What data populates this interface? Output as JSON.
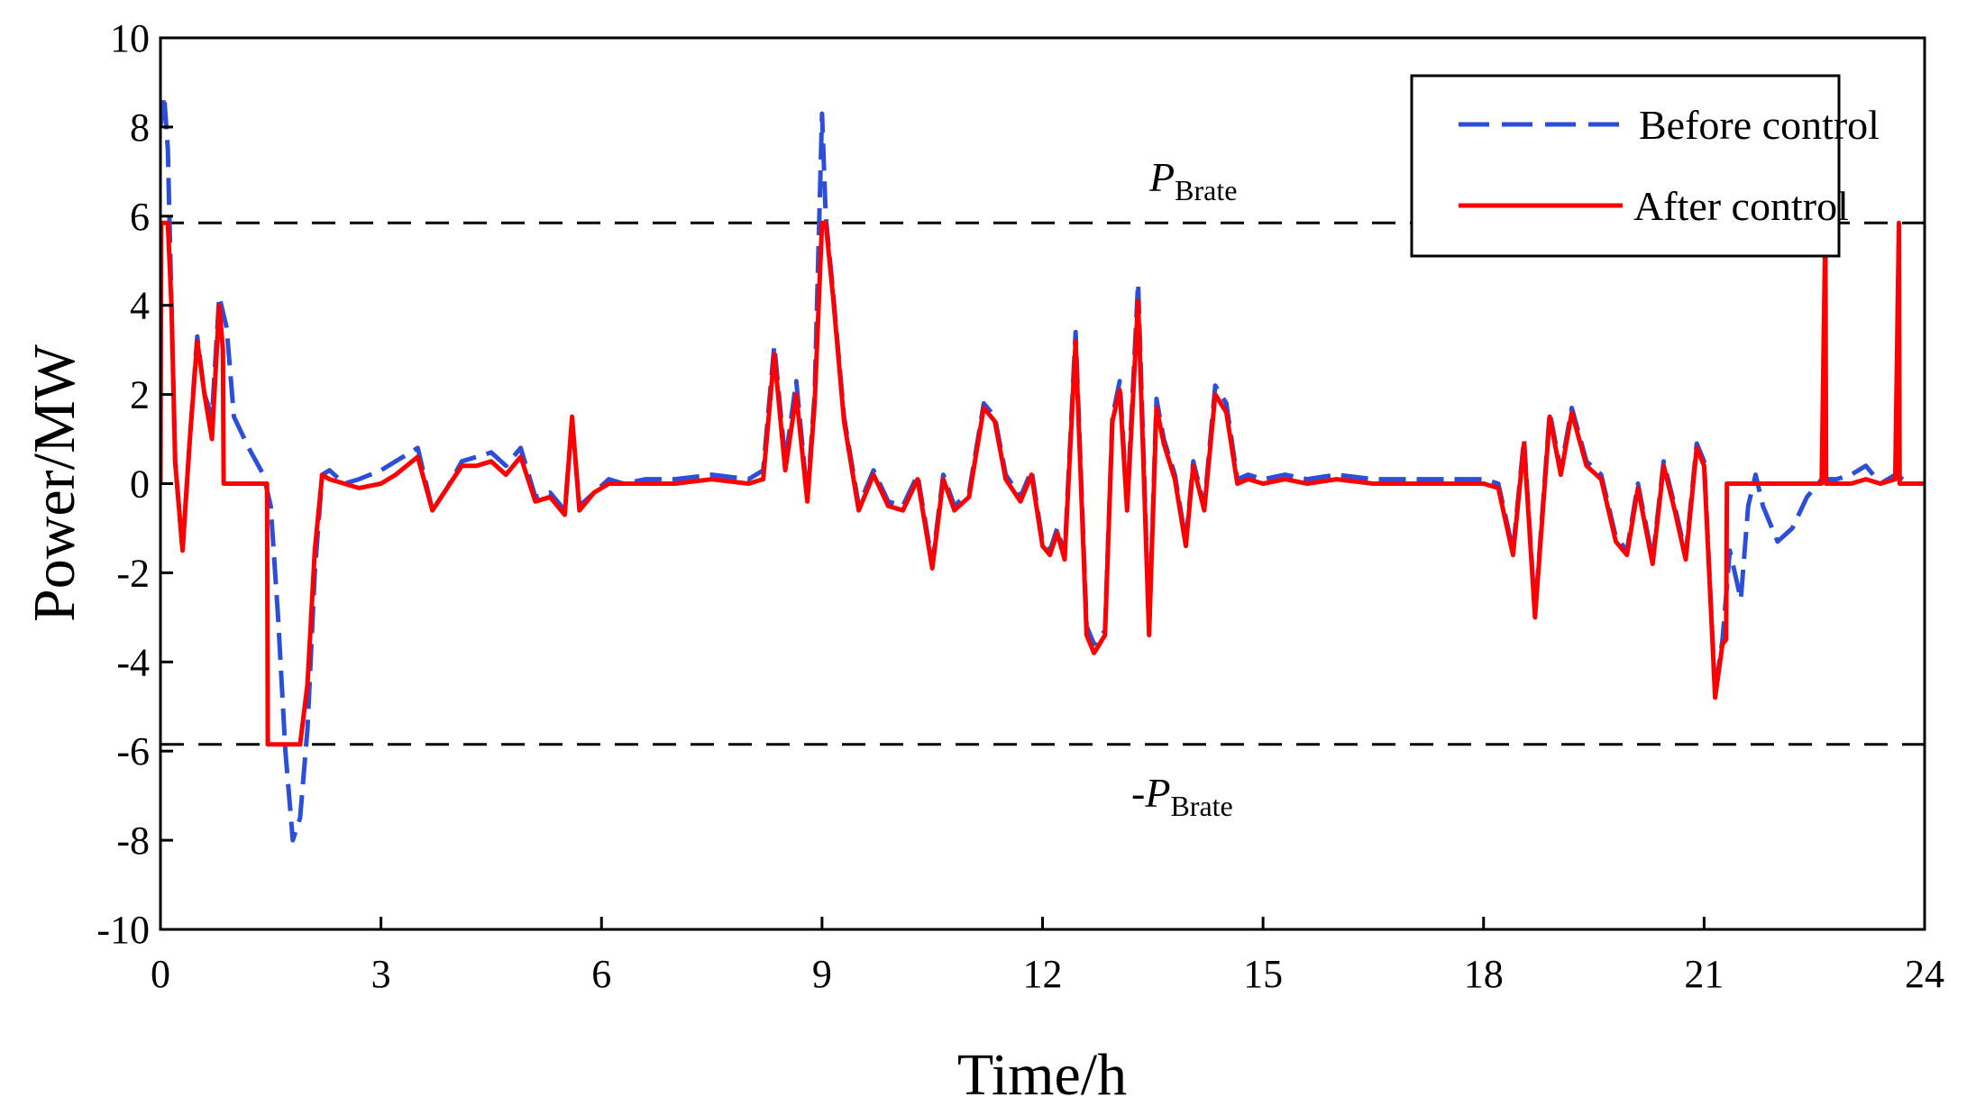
{
  "chart_data": {
    "type": "line",
    "title": "",
    "xlabel": "Time/h",
    "ylabel": "Power/MW",
    "xlim": [
      0,
      24
    ],
    "ylim": [
      -10,
      10
    ],
    "xticks": [
      0,
      3,
      6,
      9,
      12,
      15,
      18,
      21,
      24
    ],
    "yticks": [
      -10,
      -8,
      -6,
      -4,
      -2,
      0,
      2,
      4,
      6,
      8,
      10
    ],
    "grid": false,
    "legend_position": "top-right",
    "reference_lines": [
      {
        "name": "P_Brate",
        "value": 5.85,
        "style": "dashed",
        "color": "#000000",
        "label_prefix": "",
        "label_main": "P",
        "label_sub": "Brate"
      },
      {
        "name": "-P_Brate",
        "value": -5.85,
        "style": "dashed",
        "color": "#000000",
        "label_prefix": "-",
        "label_main": "P",
        "label_sub": "Brate"
      }
    ],
    "series": [
      {
        "name": "Before control",
        "color": "#2b4fd8",
        "style": "dashed",
        "x": [
          0,
          0.05,
          0.1,
          0.15,
          0.2,
          0.3,
          0.4,
          0.5,
          0.6,
          0.7,
          0.8,
          0.9,
          1.0,
          1.2,
          1.4,
          1.5,
          1.6,
          1.7,
          1.8,
          1.9,
          2.0,
          2.1,
          2.2,
          2.3,
          2.5,
          2.7,
          3.0,
          3.2,
          3.5,
          3.7,
          3.9,
          4.1,
          4.3,
          4.5,
          4.7,
          4.9,
          5.1,
          5.3,
          5.5,
          5.6,
          5.7,
          5.9,
          6.1,
          6.3,
          6.6,
          7.0,
          7.5,
          8.0,
          8.2,
          8.35,
          8.5,
          8.65,
          8.8,
          8.9,
          9.0,
          9.05,
          9.15,
          9.3,
          9.5,
          9.7,
          9.9,
          10.1,
          10.3,
          10.5,
          10.65,
          10.8,
          11.0,
          11.2,
          11.35,
          11.5,
          11.7,
          11.85,
          12.0,
          12.1,
          12.2,
          12.3,
          12.45,
          12.6,
          12.7,
          12.85,
          12.95,
          13.05,
          13.15,
          13.3,
          13.45,
          13.55,
          13.65,
          13.8,
          13.95,
          14.05,
          14.2,
          14.35,
          14.5,
          14.65,
          14.8,
          15.0,
          15.3,
          15.6,
          16.0,
          16.5,
          17.0,
          17.5,
          18.0,
          18.2,
          18.4,
          18.55,
          18.7,
          18.9,
          19.05,
          19.2,
          19.4,
          19.6,
          19.8,
          19.95,
          20.1,
          20.3,
          20.45,
          20.6,
          20.75,
          20.9,
          21.0,
          21.15,
          21.25,
          21.35,
          21.5,
          21.6,
          21.7,
          21.8,
          22.0,
          22.2,
          22.4,
          22.6,
          22.8,
          23.0,
          23.2,
          23.4,
          23.6,
          23.8,
          24.0
        ],
        "values": [
          8.0,
          8.7,
          7.5,
          4.0,
          0.5,
          -1.5,
          1.0,
          3.3,
          2.0,
          1.5,
          4.2,
          3.5,
          1.5,
          0.8,
          0.2,
          -0.5,
          -3.0,
          -6.0,
          -8.0,
          -7.5,
          -5.5,
          -2.0,
          0.2,
          0.3,
          0.0,
          0.1,
          0.3,
          0.5,
          0.8,
          -0.6,
          -0.1,
          0.5,
          0.6,
          0.7,
          0.4,
          0.8,
          -0.3,
          -0.2,
          -0.6,
          1.4,
          -0.5,
          -0.2,
          0.1,
          0.0,
          0.1,
          0.1,
          0.2,
          0.1,
          0.3,
          3.1,
          0.5,
          2.3,
          -0.3,
          2.0,
          8.3,
          6.0,
          4.3,
          1.5,
          -0.5,
          0.3,
          -0.4,
          -0.5,
          0.2,
          -1.8,
          0.2,
          -0.5,
          -0.2,
          1.8,
          1.5,
          0.2,
          -0.3,
          0.3,
          -1.3,
          -1.5,
          -1.0,
          -1.6,
          3.4,
          -3.2,
          -3.6,
          -3.3,
          1.5,
          2.3,
          -0.5,
          4.5,
          -3.3,
          1.9,
          1.0,
          0.2,
          -1.3,
          0.5,
          -0.5,
          2.2,
          1.8,
          0.1,
          0.2,
          0.1,
          0.2,
          0.1,
          0.2,
          0.1,
          0.1,
          0.1,
          0.1,
          0.0,
          -1.5,
          1.0,
          -2.9,
          1.6,
          0.3,
          1.7,
          0.5,
          0.2,
          -1.2,
          -1.5,
          0.0,
          -1.7,
          0.5,
          -0.5,
          -1.6,
          0.9,
          0.5,
          -4.7,
          -3.5,
          -1.5,
          -2.6,
          -0.5,
          0.2,
          -0.5,
          -1.3,
          -1.0,
          -0.3,
          0.1,
          0.1,
          0.2,
          0.4,
          0.0,
          0.2,
          0.0,
          0.0
        ]
      },
      {
        "name": "After control",
        "color": "#ff0000",
        "style": "solid",
        "x": [
          0,
          0.01,
          0.05,
          0.1,
          0.15,
          0.2,
          0.3,
          0.4,
          0.5,
          0.6,
          0.7,
          0.8,
          0.85,
          0.86,
          1.0,
          1.2,
          1.45,
          1.46,
          1.6,
          1.7,
          1.8,
          1.9,
          2.0,
          2.1,
          2.2,
          2.3,
          2.5,
          2.7,
          3.0,
          3.2,
          3.5,
          3.7,
          3.9,
          4.1,
          4.3,
          4.5,
          4.7,
          4.9,
          5.1,
          5.3,
          5.5,
          5.6,
          5.7,
          5.9,
          6.1,
          6.3,
          6.6,
          7.0,
          7.5,
          8.0,
          8.2,
          8.35,
          8.5,
          8.65,
          8.8,
          8.9,
          9.0,
          9.05,
          9.15,
          9.3,
          9.5,
          9.7,
          9.9,
          10.1,
          10.3,
          10.5,
          10.65,
          10.8,
          11.0,
          11.2,
          11.35,
          11.5,
          11.7,
          11.85,
          12.0,
          12.1,
          12.2,
          12.3,
          12.45,
          12.6,
          12.7,
          12.85,
          12.95,
          13.05,
          13.15,
          13.3,
          13.45,
          13.55,
          13.65,
          13.8,
          13.95,
          14.05,
          14.2,
          14.35,
          14.5,
          14.65,
          14.8,
          15.0,
          15.3,
          15.6,
          16.0,
          16.5,
          17.0,
          17.5,
          18.0,
          18.2,
          18.4,
          18.55,
          18.7,
          18.9,
          19.05,
          19.2,
          19.4,
          19.6,
          19.8,
          19.95,
          20.1,
          20.3,
          20.45,
          20.6,
          20.75,
          20.9,
          21.0,
          21.15,
          21.25,
          21.3,
          21.31,
          22.0,
          22.6,
          22.65,
          22.66,
          23.0,
          23.2,
          23.4,
          23.6,
          23.65,
          23.66,
          24.0
        ],
        "values": [
          0,
          5.85,
          5.85,
          5.85,
          4.0,
          0.5,
          -1.5,
          1.0,
          3.2,
          2.0,
          1.0,
          4.0,
          3.0,
          0.0,
          0.0,
          0.0,
          0.0,
          -5.85,
          -5.85,
          -5.85,
          -5.85,
          -5.85,
          -4.5,
          -1.5,
          0.2,
          0.1,
          0.0,
          -0.1,
          0.0,
          0.2,
          0.6,
          -0.6,
          -0.1,
          0.4,
          0.4,
          0.5,
          0.2,
          0.6,
          -0.4,
          -0.3,
          -0.7,
          1.5,
          -0.6,
          -0.2,
          0.0,
          0.0,
          0.0,
          0.0,
          0.1,
          0.0,
          0.1,
          2.9,
          0.3,
          2.0,
          -0.4,
          1.8,
          5.85,
          5.85,
          4.2,
          1.4,
          -0.6,
          0.2,
          -0.5,
          -0.6,
          0.1,
          -1.9,
          0.1,
          -0.6,
          -0.3,
          1.7,
          1.4,
          0.1,
          -0.4,
          0.2,
          -1.4,
          -1.6,
          -1.1,
          -1.7,
          3.2,
          -3.4,
          -3.8,
          -3.4,
          1.4,
          2.1,
          -0.6,
          4.1,
          -3.4,
          1.7,
          0.9,
          0.1,
          -1.4,
          0.4,
          -0.6,
          2.0,
          1.6,
          0.0,
          0.1,
          0.0,
          0.1,
          0.0,
          0.1,
          0.0,
          0.0,
          0.0,
          0.0,
          -0.1,
          -1.6,
          0.9,
          -3.0,
          1.5,
          0.2,
          1.6,
          0.4,
          0.1,
          -1.3,
          -1.6,
          -0.1,
          -1.8,
          0.4,
          -0.6,
          -1.7,
          0.8,
          0.4,
          -4.8,
          -3.6,
          -3.5,
          0.0,
          0.0,
          0.0,
          5.85,
          0.0,
          0.0,
          0.1,
          0.0,
          0.1,
          5.85,
          0.0,
          0.0
        ]
      }
    ]
  }
}
